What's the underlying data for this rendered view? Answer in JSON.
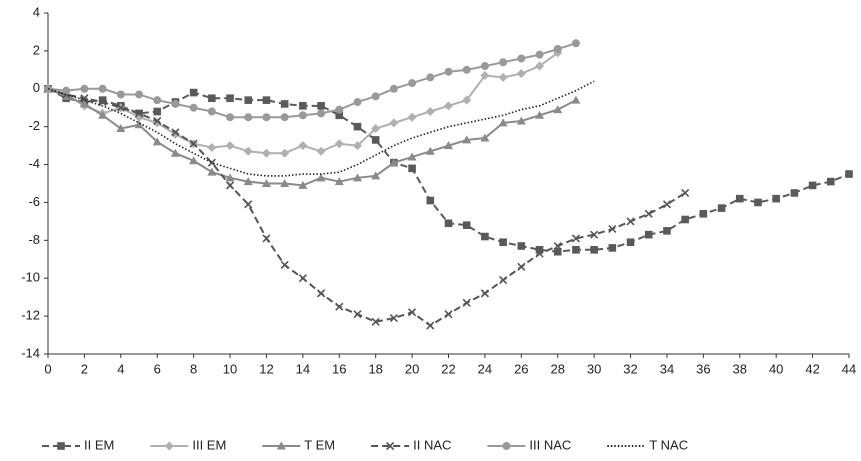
{
  "chart_data": {
    "type": "line",
    "x": [
      0,
      1,
      2,
      3,
      4,
      5,
      6,
      7,
      8,
      9,
      10,
      11,
      12,
      13,
      14,
      15,
      16,
      17,
      18,
      19,
      20,
      21,
      22,
      23,
      24,
      25,
      26,
      27,
      28,
      29,
      30,
      31,
      32,
      33,
      34,
      35,
      36,
      37,
      38,
      39,
      40,
      41,
      42,
      43,
      44
    ],
    "xlim": [
      0,
      44
    ],
    "xticks": [
      0,
      2,
      4,
      6,
      8,
      10,
      12,
      14,
      16,
      18,
      20,
      22,
      24,
      26,
      28,
      30,
      32,
      34,
      36,
      38,
      40,
      42,
      44
    ],
    "ylim": [
      -14,
      4
    ],
    "yticks": [
      -14,
      -12,
      -10,
      -8,
      -6,
      -4,
      -2,
      0,
      2,
      4
    ],
    "grid": false,
    "legend": "bottom",
    "series": [
      {
        "name": "II EM",
        "color": "#5a5a5a",
        "dash": "dashed",
        "marker": "square",
        "values": [
          0,
          -0.5,
          -0.7,
          -0.6,
          -0.9,
          -1.3,
          -1.2,
          -0.7,
          -0.2,
          -0.5,
          -0.5,
          -0.6,
          -0.6,
          -0.8,
          -0.9,
          -0.9,
          -1.4,
          -2.0,
          -2.7,
          -3.9,
          -4.2,
          -5.9,
          -7.1,
          -7.2,
          -7.8,
          -8.1,
          -8.3,
          -8.5,
          -8.6,
          -8.5,
          -8.5,
          -8.4,
          -8.1,
          -7.7,
          -7.5,
          -6.9,
          -6.6,
          -6.3,
          -5.8,
          -6.0,
          -5.8,
          -5.5,
          -5.1,
          -4.9,
          -4.5
        ]
      },
      {
        "name": "III EM",
        "color": "#b0b0b0",
        "dash": "solid",
        "marker": "diamond",
        "values": [
          0,
          -0.3,
          -0.9,
          -1.3,
          -1.0,
          -1.5,
          -1.8,
          -2.4,
          -2.9,
          -3.1,
          -3.0,
          -3.3,
          -3.4,
          -3.4,
          -3.0,
          -3.3,
          -2.9,
          -3.0,
          -2.1,
          -1.8,
          -1.5,
          -1.2,
          -0.9,
          -0.6,
          0.7,
          0.6,
          0.8,
          1.2,
          1.9,
          null,
          null,
          null,
          null,
          null,
          null,
          null,
          null,
          null,
          null,
          null,
          null,
          null,
          null,
          null,
          null
        ]
      },
      {
        "name": "T EM",
        "color": "#8a8a8a",
        "dash": "solid",
        "marker": "triangle",
        "values": [
          0,
          -0.4,
          -0.8,
          -1.4,
          -2.1,
          -1.9,
          -2.8,
          -3.4,
          -3.8,
          -4.4,
          -4.7,
          -4.9,
          -5.0,
          -5.0,
          -5.1,
          -4.7,
          -4.9,
          -4.7,
          -4.6,
          -3.9,
          -3.6,
          -3.3,
          -3.0,
          -2.7,
          -2.6,
          -1.8,
          -1.7,
          -1.4,
          -1.1,
          -0.6,
          null,
          null,
          null,
          null,
          null,
          null,
          null,
          null,
          null,
          null,
          null,
          null,
          null,
          null,
          null
        ]
      },
      {
        "name": "II NAC",
        "color": "#555555",
        "dash": "dashed",
        "marker": "cross",
        "values": [
          0,
          -0.3,
          -0.5,
          -0.7,
          -1.0,
          -1.3,
          -1.7,
          -2.3,
          -2.9,
          -3.9,
          -5.1,
          -6.1,
          -7.9,
          -9.3,
          -10.0,
          -10.8,
          -11.5,
          -11.9,
          -12.3,
          -12.1,
          -11.8,
          -12.5,
          -11.9,
          -11.3,
          -10.8,
          -10.1,
          -9.4,
          -8.7,
          -8.3,
          -7.9,
          -7.7,
          -7.4,
          -7.0,
          -6.6,
          -6.1,
          -5.5,
          null,
          null,
          null,
          null,
          null,
          null,
          null,
          null,
          null
        ]
      },
      {
        "name": "III NAC",
        "color": "#999999",
        "dash": "solid",
        "marker": "circle",
        "values": [
          0,
          -0.1,
          0,
          0,
          -0.3,
          -0.3,
          -0.6,
          -0.8,
          -1.0,
          -1.2,
          -1.5,
          -1.5,
          -1.5,
          -1.5,
          -1.4,
          -1.3,
          -1.1,
          -0.7,
          -0.4,
          0,
          0.3,
          0.6,
          0.9,
          1.0,
          1.2,
          1.4,
          1.6,
          1.8,
          2.1,
          2.4,
          null,
          null,
          null,
          null,
          null,
          null,
          null,
          null,
          null,
          null,
          null,
          null,
          null,
          null,
          null
        ]
      },
      {
        "name": "T NAC",
        "color": "#222222",
        "dash": "dotted",
        "marker": "none",
        "values": [
          0,
          -0.3,
          -0.6,
          -0.9,
          -1.3,
          -1.8,
          -2.3,
          -2.9,
          -3.4,
          -3.9,
          -4.2,
          -4.5,
          -4.6,
          -4.6,
          -4.5,
          -4.5,
          -4.4,
          -4.0,
          -3.5,
          -3.0,
          -2.6,
          -2.3,
          -2.0,
          -1.8,
          -1.6,
          -1.4,
          -1.1,
          -0.9,
          -0.5,
          -0.1,
          0.4,
          null,
          null,
          null,
          null,
          null,
          null,
          null,
          null,
          null,
          null,
          null,
          null,
          null,
          null
        ]
      }
    ]
  }
}
